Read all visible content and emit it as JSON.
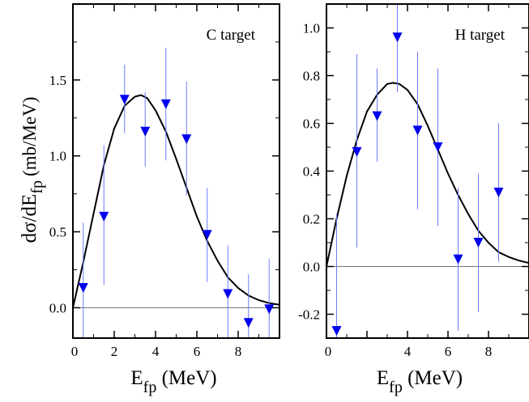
{
  "colors": {
    "marker": "#0000ee",
    "errorbar": "#6a7cff",
    "curve": "#000000",
    "zero_line": "#777777",
    "frame": "#000000"
  },
  "ylabel_parts": {
    "main": "dσ/dE",
    "sub": "fp",
    "units": "(mb/MeV)"
  },
  "chart_data": [
    {
      "type": "scatter",
      "panel_label": "C target",
      "xlabel_main": "E",
      "xlabel_sub": "fp",
      "xlabel_units": "(MeV)",
      "xlim": [
        0,
        10
      ],
      "ylim": [
        -0.2,
        2.0
      ],
      "xticks": [
        0,
        2,
        4,
        6,
        8
      ],
      "xtick_labels": [
        "0",
        "2",
        "4",
        "6",
        "8"
      ],
      "yticks": [
        0.0,
        0.5,
        1.0,
        1.5
      ],
      "ytick_labels": [
        "0.0",
        "0.5",
        "1.0",
        "1.5"
      ],
      "marker": "triangle-down",
      "points": [
        {
          "x": 0.5,
          "y": 0.13,
          "ylow": -0.2,
          "yhigh": 0.56
        },
        {
          "x": 1.5,
          "y": 0.6,
          "ylow": 0.15,
          "yhigh": 1.07
        },
        {
          "x": 2.5,
          "y": 1.37,
          "ylow": 1.15,
          "yhigh": 1.6
        },
        {
          "x": 3.5,
          "y": 1.16,
          "ylow": 0.93,
          "yhigh": 1.42
        },
        {
          "x": 4.5,
          "y": 1.34,
          "ylow": 0.97,
          "yhigh": 1.71
        },
        {
          "x": 5.5,
          "y": 1.11,
          "ylow": 0.74,
          "yhigh": 1.49
        },
        {
          "x": 6.5,
          "y": 0.48,
          "ylow": 0.17,
          "yhigh": 0.79
        },
        {
          "x": 7.5,
          "y": 0.09,
          "ylow": -0.2,
          "yhigh": 0.41
        },
        {
          "x": 8.5,
          "y": -0.1,
          "ylow": -0.2,
          "yhigh": 0.22
        },
        {
          "x": 9.5,
          "y": -0.01,
          "ylow": -0.2,
          "yhigh": 0.32
        }
      ],
      "fit_curve": {
        "type": "line",
        "x": [
          0,
          0.5,
          1.0,
          1.5,
          2.0,
          2.5,
          3.0,
          3.3,
          3.6,
          4.0,
          4.5,
          5.0,
          5.5,
          6.0,
          6.5,
          7.0,
          7.5,
          8.0,
          8.5,
          9.0,
          9.5,
          10.0
        ],
        "y": [
          0.0,
          0.3,
          0.62,
          0.94,
          1.18,
          1.33,
          1.39,
          1.4,
          1.38,
          1.3,
          1.16,
          0.98,
          0.79,
          0.6,
          0.44,
          0.31,
          0.2,
          0.13,
          0.08,
          0.05,
          0.03,
          0.02
        ]
      }
    },
    {
      "type": "scatter",
      "panel_label": "H target",
      "xlabel_main": "E",
      "xlabel_sub": "fp",
      "xlabel_units": "(MeV)",
      "xlim": [
        0,
        10
      ],
      "ylim": [
        -0.3,
        1.1
      ],
      "xticks": [
        0,
        4,
        6,
        8
      ],
      "xtick_labels": [
        "0",
        "4",
        "6",
        "8"
      ],
      "yticks": [
        -0.2,
        0.0,
        0.2,
        0.4,
        0.6,
        0.8,
        1.0
      ],
      "ytick_labels": [
        "-0.2",
        "0.0",
        "0.2",
        "0.4",
        "0.6",
        "0.8",
        "1.0"
      ],
      "marker": "triangle-down",
      "points": [
        {
          "x": 0.5,
          "y": -0.27,
          "ylow": -0.3,
          "yhigh": 0.22
        },
        {
          "x": 1.5,
          "y": 0.48,
          "ylow": 0.08,
          "yhigh": 0.89
        },
        {
          "x": 2.5,
          "y": 0.63,
          "ylow": 0.44,
          "yhigh": 0.83
        },
        {
          "x": 3.5,
          "y": 0.96,
          "ylow": 0.73,
          "yhigh": 1.1
        },
        {
          "x": 4.5,
          "y": 0.57,
          "ylow": 0.24,
          "yhigh": 0.9
        },
        {
          "x": 5.5,
          "y": 0.5,
          "ylow": 0.17,
          "yhigh": 0.83
        },
        {
          "x": 6.5,
          "y": 0.03,
          "ylow": -0.27,
          "yhigh": 0.33
        },
        {
          "x": 7.5,
          "y": 0.1,
          "ylow": -0.19,
          "yhigh": 0.39
        },
        {
          "x": 8.5,
          "y": 0.31,
          "ylow": 0.02,
          "yhigh": 0.6
        }
      ],
      "fit_curve": {
        "type": "line",
        "x": [
          0,
          0.5,
          1.0,
          1.5,
          2.0,
          2.5,
          3.0,
          3.3,
          3.6,
          4.0,
          4.5,
          5.0,
          5.5,
          6.0,
          6.5,
          7.0,
          7.5,
          8.0,
          8.5,
          9.0,
          9.5,
          10.0
        ],
        "y": [
          0.0,
          0.2,
          0.38,
          0.53,
          0.65,
          0.72,
          0.765,
          0.77,
          0.765,
          0.74,
          0.68,
          0.59,
          0.49,
          0.39,
          0.3,
          0.22,
          0.15,
          0.1,
          0.06,
          0.04,
          0.025,
          0.015
        ]
      }
    }
  ]
}
